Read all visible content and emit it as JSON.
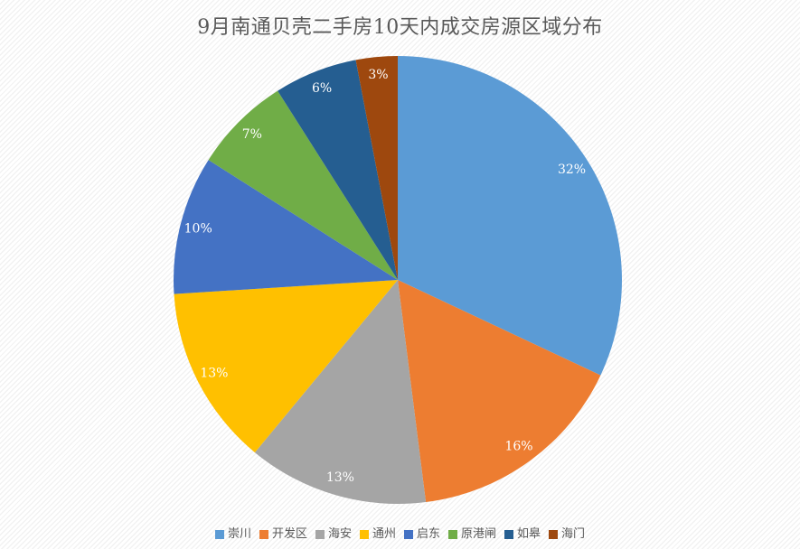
{
  "chart_data": {
    "type": "pie",
    "title": "9月南通贝壳二手房10天内成交房源区域分布",
    "categories": [
      "崇川",
      "开发区",
      "海安",
      "通州",
      "启东",
      "原港闸",
      "如皋",
      "海门"
    ],
    "values": [
      32,
      16,
      13,
      13,
      10,
      7,
      6,
      3
    ],
    "labels": [
      "32%",
      "16%",
      "13%",
      "13%",
      "10%",
      "7%",
      "6%",
      "3%"
    ],
    "colors": [
      "#5B9BD5",
      "#ED7D31",
      "#A5A5A5",
      "#FFC000",
      "#4472C4",
      "#70AD47",
      "#255E91",
      "#9E480E"
    ],
    "label_color": "#FFFFFF",
    "title_color": "#595959",
    "legend_position": "bottom",
    "start_angle_deg": 0,
    "direction": "clockwise"
  }
}
